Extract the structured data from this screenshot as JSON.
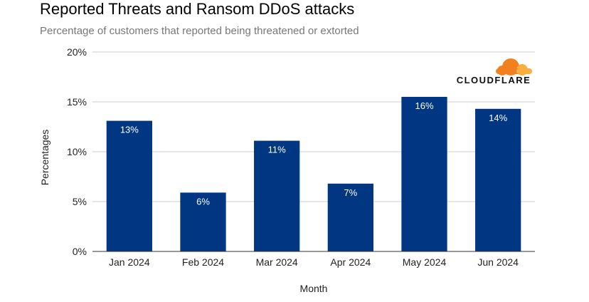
{
  "chart_data": {
    "type": "bar",
    "title": "Reported Threats and Ransom DDoS attacks",
    "subtitle": "Percentage of customers that reported being threatened or extorted",
    "xlabel": "Month",
    "ylabel": "Percentages",
    "categories": [
      "Jan 2024",
      "Feb 2024",
      "Mar 2024",
      "Apr 2024",
      "May 2024",
      "Jun 2024"
    ],
    "values": [
      13.1,
      5.9,
      11.1,
      6.8,
      15.5,
      14.3
    ],
    "data_labels": [
      "13%",
      "6%",
      "11%",
      "7%",
      "16%",
      "14%"
    ],
    "ylim": [
      0,
      20
    ],
    "yticks": [
      0,
      5,
      10,
      15,
      20
    ],
    "ytick_labels": [
      "0%",
      "5%",
      "10%",
      "15%",
      "20%"
    ],
    "grid": true,
    "legend": "none",
    "bar_color": "#003682",
    "gridline_color": "#cccccc"
  },
  "logo": {
    "text": "CLOUDFLARE",
    "icon": "cloud-icon",
    "colors": [
      "#f38020",
      "#faae40"
    ]
  }
}
